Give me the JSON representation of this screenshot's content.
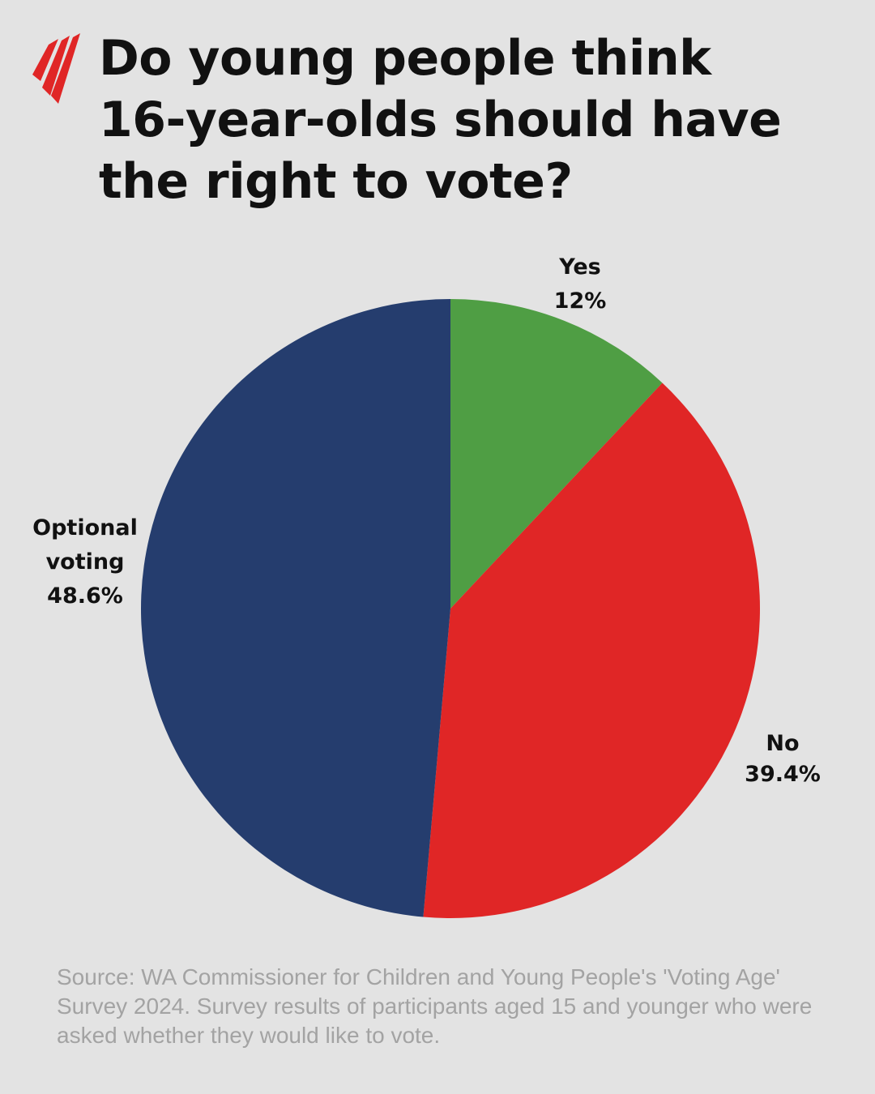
{
  "chart_data": {
    "type": "pie",
    "title": "Do young people think 16-year-olds should have the right to vote?",
    "categories": [
      "Yes",
      "No",
      "Optional voting"
    ],
    "values": [
      12,
      39.4,
      48.6
    ],
    "value_labels": [
      "12%",
      "39.4%",
      "48.6%"
    ],
    "colors": [
      "#4f9e44",
      "#e02626",
      "#253d6e"
    ],
    "source": "Source: WA Commissioner for Children and Young People's 'Voting Age' Survey 2024. Survey results of participants aged 15 and younger who were asked whether they would like to vote."
  }
}
